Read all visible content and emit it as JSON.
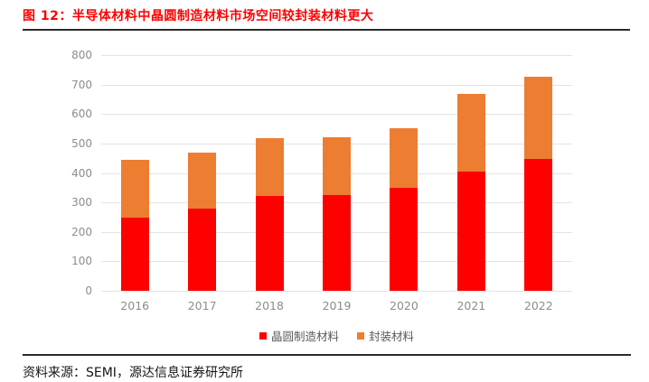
{
  "page": {
    "title": "图 12：半导体材料中晶圆制造材料市场空间较封装材料更大",
    "source": "资料来源：SEMI，源达信息证券研究所"
  },
  "chart_data": {
    "type": "bar",
    "stacked": true,
    "title": "图 12：半导体材料中晶圆制造材料市场空间较封装材料更大",
    "categories": [
      "2016",
      "2017",
      "2018",
      "2019",
      "2020",
      "2021",
      "2022"
    ],
    "series": [
      {
        "name": "晶圆制造材料",
        "color": "#ff0000",
        "values": [
          247,
          278,
          322,
          326,
          349,
          405,
          447
        ]
      },
      {
        "name": "封装材料",
        "color": "#ed7d31",
        "values": [
          196,
          191,
          197,
          195,
          204,
          263,
          280
        ]
      }
    ],
    "stack_totals": [
      443,
      469,
      519,
      521,
      553,
      668,
      727
    ],
    "xlabel": "",
    "ylabel": "",
    "ylim": [
      0,
      800
    ],
    "ytick_interval": 100,
    "yticks": [
      0,
      100,
      200,
      300,
      400,
      500,
      600,
      700,
      800
    ],
    "grid": true,
    "legend_position": "bottom"
  },
  "colors": {
    "title_red": "#ff0000",
    "divider_dark": "#2b2b2b",
    "gridline": "#e3e3e3",
    "tick_label": "#8c8c8c",
    "legend_label": "#595959",
    "bar_wafer": "#ff0000",
    "bar_packaging": "#ed7d31"
  }
}
